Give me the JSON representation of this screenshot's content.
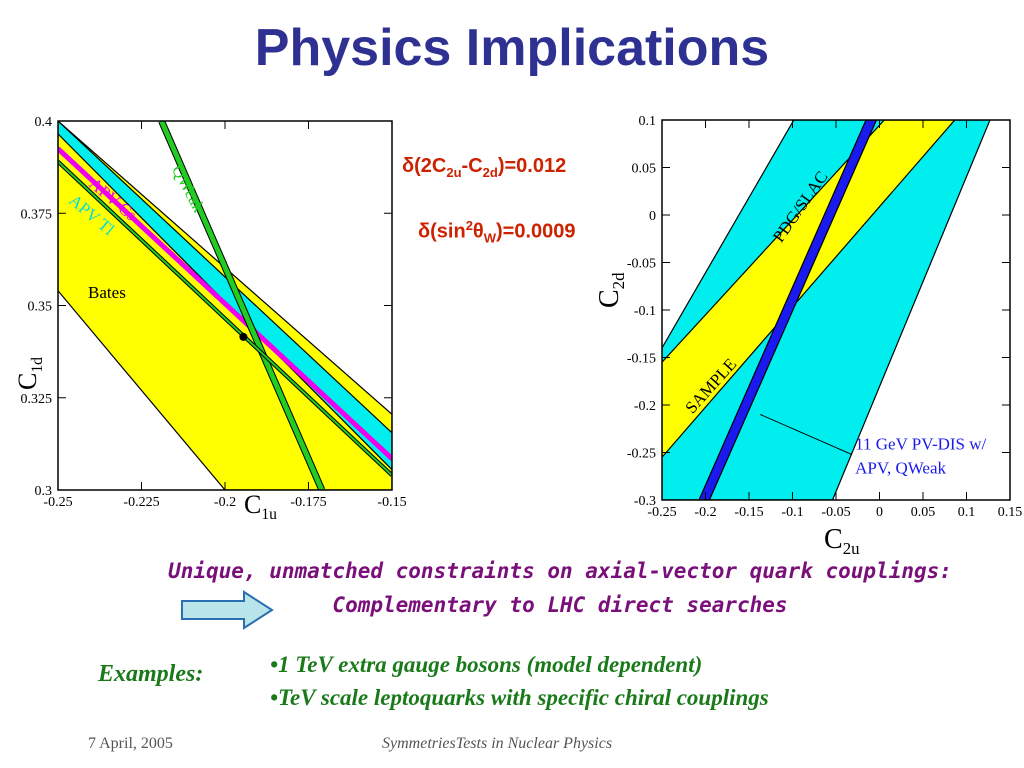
{
  "slide": {
    "title": "Physics Implications",
    "formula1": {
      "pre": "δ(2C",
      "sub1": "2u",
      "mid": "-C",
      "sub2": "2d",
      "post": ")=0.012"
    },
    "formula2": {
      "pre": "δ(sin",
      "sup": "2",
      "theta": "θ",
      "sub": "W",
      "post": ")=0.0009"
    },
    "unique_line1": "Unique, unmatched constraints on axial-vector quark couplings:",
    "unique_line2": "Complementary to LHC direct searches",
    "examples_label": "Examples:",
    "bullets": [
      "•1 TeV extra gauge bosons (model dependent)",
      "•TeV scale leptoquarks with specific chiral couplings"
    ],
    "footer_left": "7 April, 2005",
    "footer_center": "SymmetriesTests in Nuclear Physics",
    "colors": {
      "title": "#2e3192",
      "formula": "#cc2200",
      "unique": "#7a0f7a",
      "green_text": "#1a7a1a",
      "yellow": "#ffff00",
      "cyan": "#00eeee",
      "magenta": "#ee00ee",
      "green": "#22cc22",
      "blue": "#1a1aee",
      "arrow_fill": "#b8e4ea"
    }
  },
  "chart_data": [
    {
      "type": "band-plot",
      "xlabel": "C",
      "xlabel_sub": "1u",
      "ylabel": "C",
      "ylabel_sub": "1d",
      "xlim": [
        -0.25,
        -0.15
      ],
      "ylim": [
        0.3,
        0.4
      ],
      "xticks": [
        -0.25,
        -0.225,
        -0.2,
        -0.175,
        -0.15
      ],
      "xtick_labels": [
        "-0.25",
        "-0.225",
        "-0.2",
        "",
        "-0.15"
      ],
      "yticks": [
        0.3,
        0.325,
        0.35,
        0.375,
        0.4
      ],
      "ytick_labels": [
        "0.3",
        "0.325",
        "0.35",
        "0.375",
        "0.4"
      ],
      "xtick_labels_extra": [
        {
          "x": -0.175,
          "label": "-0.175"
        }
      ],
      "bands": [
        {
          "label": "Bates",
          "color": "#ffff00",
          "polygon": [
            [
              -0.25,
              0.4
            ],
            [
              -0.25,
              0.354
            ],
            [
              -0.2,
              0.3
            ],
            [
              -0.15,
              0.3
            ],
            [
              -0.15,
              0.3205
            ]
          ]
        },
        {
          "label": "",
          "color": "#00eeee",
          "polygon": [
            [
              -0.25,
              0.4
            ],
            [
              -0.25,
              0.3965
            ],
            [
              -0.15,
              0.3055
            ],
            [
              -0.15,
              0.3155
            ]
          ]
        },
        {
          "label": "APV Cs",
          "color": "#ee00ee",
          "line": [
            [
              -0.25,
              0.3925
            ],
            [
              -0.15,
              0.3085
            ]
          ],
          "width": 5
        }
      ],
      "lines": [
        {
          "label": "QWeak",
          "color": "#22cc22",
          "points": [
            [
              -0.219,
              0.4
            ],
            [
              -0.171,
              0.3
            ]
          ],
          "width": 5
        },
        {
          "label": "APV Tl",
          "color": "#22cc22",
          "points": [
            [
              -0.25,
              0.389
            ],
            [
              -0.15,
              0.304
            ]
          ],
          "width": 2
        }
      ],
      "labels": [
        {
          "text": "QWeak",
          "x": -0.216,
          "y": 0.387,
          "color": "#22cc22",
          "rotate": 62
        },
        {
          "text": "APV Cs",
          "x": -0.241,
          "y": 0.3825,
          "color": "#ee00ee",
          "rotate": 40
        },
        {
          "text": "APV Tl",
          "x": -0.247,
          "y": 0.378,
          "color": "#00dddd",
          "rotate": 40
        },
        {
          "text": "Bates",
          "x": -0.241,
          "y": 0.352,
          "color": "#000000",
          "rotate": 0
        }
      ],
      "point": {
        "x": -0.1945,
        "y": 0.3415
      }
    },
    {
      "type": "band-plot",
      "xlabel": "C",
      "xlabel_sub": "2u",
      "ylabel": "C",
      "ylabel_sub": "2d",
      "xlim": [
        -0.25,
        0.15
      ],
      "ylim": [
        -0.3,
        0.1
      ],
      "xticks": [
        -0.25,
        -0.2,
        -0.15,
        -0.1,
        -0.05,
        0,
        0.05,
        0.1,
        0.15
      ],
      "xtick_labels": [
        "-0.25",
        "-0.2",
        "-0.15",
        "-0.1",
        "-0.05",
        "0",
        "0.05",
        "0.1",
        "0.15"
      ],
      "yticks": [
        -0.3,
        -0.25,
        -0.2,
        -0.15,
        -0.1,
        -0.05,
        0,
        0.05,
        0.1
      ],
      "ytick_labels": [
        "-0.3",
        "-0.25",
        "-0.2",
        "-0.15",
        "-0.1",
        "-0.05",
        "0",
        "0.05",
        "0.1"
      ],
      "bands": [
        {
          "label": "PDG/SLAC",
          "color": "#00eeee",
          "polygon": [
            [
              -0.25,
              -0.3
            ],
            [
              -0.25,
              -0.14
            ],
            [
              -0.0985,
              0.1
            ],
            [
              0.127,
              0.1
            ],
            [
              -0.054,
              -0.3
            ]
          ]
        },
        {
          "label": "SAMPLE",
          "color": "#ffff00",
          "polygon": [
            [
              -0.25,
              -0.155
            ],
            [
              -0.25,
              -0.255
            ],
            [
              0.0865,
              0.1
            ],
            [
              0.0055,
              0.1
            ]
          ]
        },
        {
          "label": "11 GeV PV-DIS w/ APV, QWeak",
          "color": "#1a1aee",
          "polygon": [
            [
              -0.2075,
              -0.3
            ],
            [
              -0.1955,
              -0.3
            ],
            [
              -0.0035,
              0.1
            ],
            [
              -0.0155,
              0.1
            ]
          ]
        }
      ],
      "labels": [
        {
          "text": "PDG/SLAC",
          "x": -0.113,
          "y": -0.03,
          "color": "#000000",
          "rotate": -55
        },
        {
          "text": "SAMPLE",
          "x": -0.215,
          "y": -0.21,
          "color": "#000000",
          "rotate": -48
        },
        {
          "text": "11 GeV PV-DIS w/",
          "x": -0.028,
          "y": -0.247,
          "color": "#1a1aee",
          "rotate": 0
        },
        {
          "text": "APV, QWeak",
          "x": -0.028,
          "y": -0.272,
          "color": "#1a1aee",
          "rotate": 0
        }
      ],
      "pointer": [
        [
          -0.032,
          -0.252
        ],
        [
          -0.137,
          -0.21
        ]
      ]
    }
  ]
}
